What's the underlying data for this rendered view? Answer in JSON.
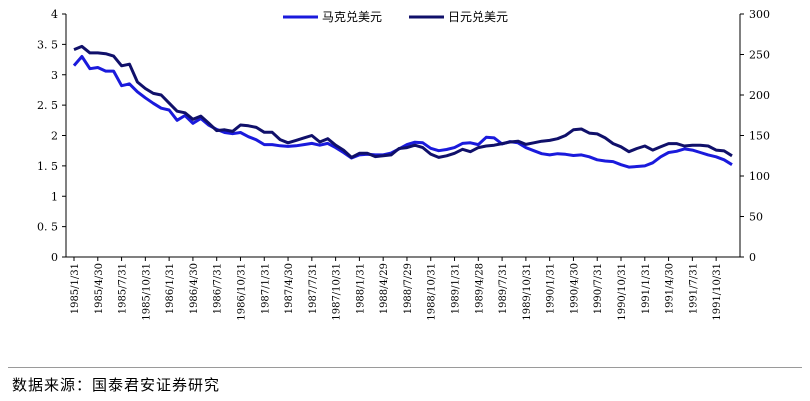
{
  "chart_data": {
    "type": "line",
    "title": "",
    "xlabel": "",
    "ylabel": "",
    "y2label": "",
    "ylim": [
      0,
      4
    ],
    "y2lim": [
      0,
      300
    ],
    "yticks": [
      "0",
      "0. 5",
      "1",
      "1. 5",
      "2",
      "2. 5",
      "3",
      "3. 5",
      "4"
    ],
    "y2ticks": [
      "0",
      "50",
      "100",
      "150",
      "200",
      "250",
      "300"
    ],
    "grid": false,
    "legend_position": "top-center",
    "x": [
      "1985/1/31",
      "1985/2/28",
      "1985/3/31",
      "1985/4/30",
      "1985/5/31",
      "1985/6/30",
      "1985/7/31",
      "1985/8/31",
      "1985/9/30",
      "1985/10/31",
      "1985/11/30",
      "1985/12/31",
      "1986/1/31",
      "1986/2/28",
      "1986/3/31",
      "1986/4/30",
      "1986/5/31",
      "1986/6/30",
      "1986/7/31",
      "1986/8/31",
      "1986/9/30",
      "1986/10/31",
      "1986/11/30",
      "1986/12/31",
      "1987/1/31",
      "1987/2/28",
      "1987/3/31",
      "1987/4/30",
      "1987/5/31",
      "1987/6/30",
      "1987/7/31",
      "1987/8/31",
      "1987/9/30",
      "1987/10/31",
      "1987/11/30",
      "1987/12/31",
      "1988/1/31",
      "1988/2/29",
      "1988/3/31",
      "1988/4/29",
      "1988/5/31",
      "1988/6/30",
      "1988/7/29",
      "1988/8/31",
      "1988/9/30",
      "1988/10/31",
      "1988/11/30",
      "1988/12/31",
      "1989/1/31",
      "1989/2/28",
      "1989/3/31",
      "1989/4/28",
      "1989/5/31",
      "1989/6/30",
      "1989/7/31",
      "1989/8/31",
      "1989/9/29",
      "1989/10/31",
      "1989/11/30",
      "1989/12/29",
      "1990/1/31",
      "1990/2/28",
      "1990/3/30",
      "1990/4/30",
      "1990/5/31",
      "1990/6/29",
      "1990/7/31",
      "1990/8/31",
      "1990/9/28",
      "1990/10/31",
      "1990/11/30",
      "1990/12/31",
      "1991/1/31",
      "1991/2/28",
      "1991/3/29",
      "1991/4/30",
      "1991/5/31",
      "1991/6/28",
      "1991/7/31",
      "1991/8/30",
      "1991/9/30",
      "1991/10/31",
      "1991/11/29",
      "1991/12/31"
    ],
    "xtick_labels": [
      "1985/1/31",
      "1985/4/30",
      "1985/7/31",
      "1985/10/31",
      "1986/1/31",
      "1986/4/30",
      "1986/7/31",
      "1986/10/31",
      "1987/1/31",
      "1987/4/30",
      "1987/7/31",
      "1987/10/31",
      "1988/1/31",
      "1988/4/29",
      "1988/7/29",
      "1988/10/31",
      "1989/1/31",
      "1989/4/28",
      "1989/7/31",
      "1989/10/31",
      "1990/1/31",
      "1990/4/30",
      "1990/7/31",
      "1990/10/31",
      "1991/1/31",
      "1991/4/30",
      "1991/7/31",
      "1991/10/31"
    ],
    "series": [
      {
        "name": "马克兑美元",
        "axis": "left",
        "color": "#1a1adc",
        "values": [
          3.15,
          3.3,
          3.1,
          3.12,
          3.06,
          3.06,
          2.82,
          2.85,
          2.72,
          2.62,
          2.53,
          2.45,
          2.42,
          2.25,
          2.33,
          2.2,
          2.28,
          2.17,
          2.1,
          2.05,
          2.03,
          2.05,
          1.98,
          1.93,
          1.85,
          1.85,
          1.83,
          1.82,
          1.83,
          1.85,
          1.87,
          1.84,
          1.87,
          1.8,
          1.72,
          1.63,
          1.68,
          1.69,
          1.68,
          1.68,
          1.71,
          1.78,
          1.85,
          1.89,
          1.88,
          1.79,
          1.75,
          1.77,
          1.8,
          1.87,
          1.88,
          1.85,
          1.97,
          1.96,
          1.86,
          1.9,
          1.88,
          1.8,
          1.75,
          1.7,
          1.68,
          1.7,
          1.69,
          1.67,
          1.68,
          1.65,
          1.6,
          1.58,
          1.57,
          1.52,
          1.48,
          1.49,
          1.5,
          1.55,
          1.65,
          1.72,
          1.74,
          1.78,
          1.76,
          1.72,
          1.68,
          1.65,
          1.6,
          1.52
        ]
      },
      {
        "name": "日元兑美元",
        "axis": "right",
        "color": "#10106a",
        "values": [
          256,
          260,
          252,
          252,
          251,
          248,
          236,
          238,
          216,
          208,
          202,
          200,
          190,
          180,
          178,
          170,
          174,
          165,
          156,
          157,
          155,
          163,
          162,
          160,
          154,
          154,
          145,
          141,
          144,
          147,
          150,
          142,
          146,
          138,
          132,
          123,
          128,
          128,
          124,
          125,
          126,
          134,
          135,
          138,
          135,
          127,
          123,
          125,
          128,
          133,
          130,
          135,
          137,
          138,
          140,
          142,
          143,
          139,
          141,
          143,
          144,
          146,
          150,
          157,
          158,
          153,
          152,
          147,
          140,
          136,
          130,
          134,
          137,
          132,
          136,
          140,
          140,
          137,
          138,
          138,
          137,
          132,
          131,
          125
        ]
      }
    ]
  },
  "source_text": "数据来源：国泰君安证券研究"
}
